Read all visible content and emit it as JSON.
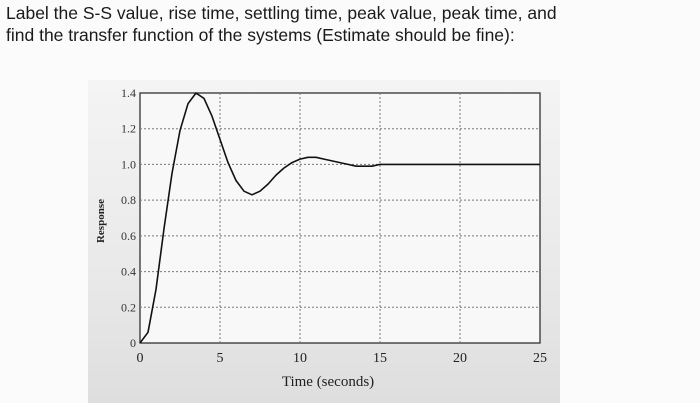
{
  "question": {
    "line1": "Label the S-S value, rise time, settling time, peak value, peak time, and",
    "line2": "find the transfer function of the systems (Estimate should be fine):"
  },
  "chart_data": {
    "type": "line",
    "title": "",
    "xlabel": "Time (seconds)",
    "ylabel": "Response",
    "xlim": [
      0,
      25
    ],
    "ylim": [
      0,
      1.4
    ],
    "x_ticks": [
      "0",
      "5",
      "10",
      "15",
      "20",
      "25"
    ],
    "y_ticks": [
      "0",
      "0.2",
      "0.4",
      "0.6",
      "0.8",
      "1.0",
      "1.2",
      "1.4"
    ],
    "grid": true,
    "series": [
      {
        "x": [
          0,
          0.5,
          1,
          1.5,
          2,
          2.5,
          3,
          3.5,
          4,
          4.5,
          5,
          5.5,
          6,
          6.5,
          7,
          7.5,
          8,
          8.5,
          9,
          9.5,
          10,
          10.5,
          11,
          11.5,
          12,
          12.5,
          13,
          13.5,
          14,
          14.5,
          15,
          16,
          17,
          18,
          19,
          20,
          21,
          22,
          23,
          24,
          25
        ],
        "y": [
          0,
          0.06,
          0.3,
          0.64,
          0.95,
          1.19,
          1.34,
          1.4,
          1.37,
          1.27,
          1.14,
          1.01,
          0.91,
          0.85,
          0.83,
          0.85,
          0.89,
          0.94,
          0.98,
          1.01,
          1.03,
          1.04,
          1.04,
          1.03,
          1.02,
          1.01,
          1.0,
          0.99,
          0.99,
          0.99,
          1.0,
          1.0,
          1.0,
          1.0,
          1.0,
          1.0,
          1.0,
          1.0,
          1.0,
          1.0,
          1.0
        ]
      }
    ]
  }
}
